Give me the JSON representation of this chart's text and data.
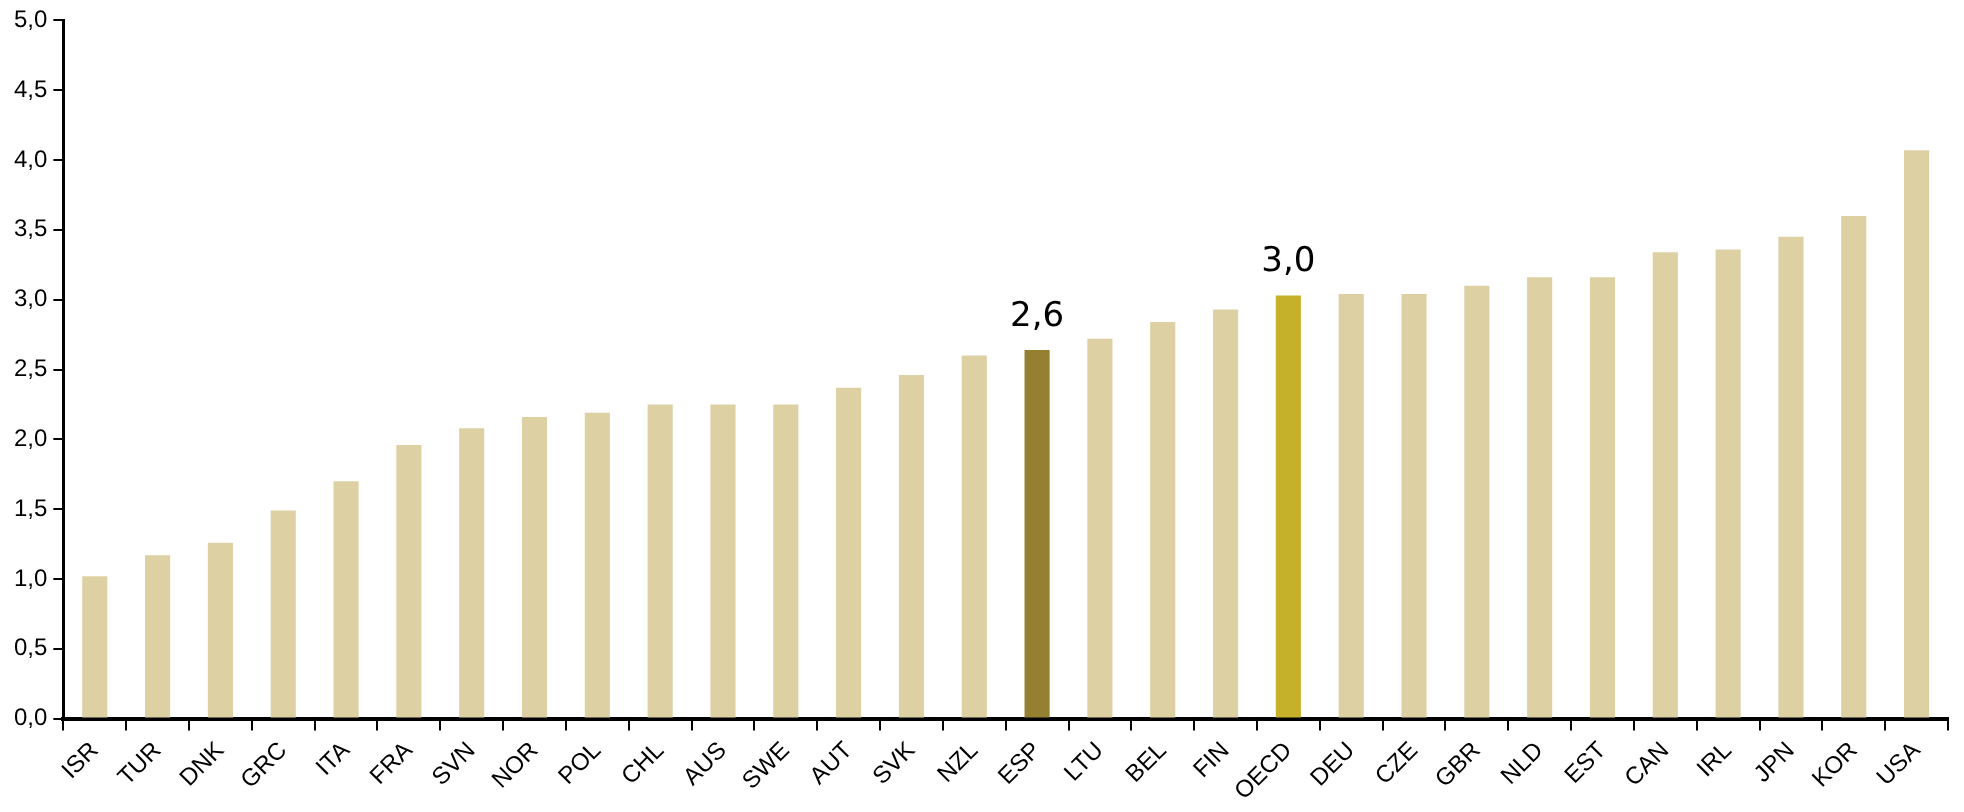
{
  "chart_data": {
    "type": "bar",
    "categories": [
      "ISR",
      "TUR",
      "DNK",
      "GRC",
      "ITA",
      "FRA",
      "SVN",
      "NOR",
      "POL",
      "CHL",
      "AUS",
      "SWE",
      "AUT",
      "SVK",
      "NZL",
      "ESP",
      "LTU",
      "BEL",
      "FIN",
      "OECD",
      "DEU",
      "CZE",
      "GBR",
      "NLD",
      "EST",
      "CAN",
      "IRL",
      "JPN",
      "KOR",
      "USA"
    ],
    "values": [
      1.02,
      1.17,
      1.26,
      1.49,
      1.7,
      1.96,
      2.08,
      2.16,
      2.19,
      2.25,
      2.25,
      2.25,
      2.37,
      2.46,
      2.6,
      2.64,
      2.72,
      2.84,
      2.93,
      3.03,
      3.04,
      3.04,
      3.1,
      3.16,
      3.16,
      3.34,
      3.36,
      3.45,
      3.6,
      4.07
    ],
    "colors": [
      "#ddd0a3",
      "#ddd0a3",
      "#ddd0a3",
      "#ddd0a3",
      "#ddd0a3",
      "#ddd0a3",
      "#ddd0a3",
      "#ddd0a3",
      "#ddd0a3",
      "#ddd0a3",
      "#ddd0a3",
      "#ddd0a3",
      "#ddd0a3",
      "#ddd0a3",
      "#ddd0a3",
      "#948030",
      "#ddd0a3",
      "#ddd0a3",
      "#ddd0a3",
      "#c6b12a",
      "#ddd0a3",
      "#ddd0a3",
      "#ddd0a3",
      "#ddd0a3",
      "#ddd0a3",
      "#ddd0a3",
      "#ddd0a3",
      "#ddd0a3",
      "#ddd0a3",
      "#ddd0a3"
    ],
    "value_labels": [
      null,
      null,
      null,
      null,
      null,
      null,
      null,
      null,
      null,
      null,
      null,
      null,
      null,
      null,
      null,
      "2,6",
      null,
      null,
      null,
      "3,0",
      null,
      null,
      null,
      null,
      null,
      null,
      null,
      null,
      null,
      null
    ],
    "ylim": [
      0,
      5
    ],
    "yticks": [
      {
        "value": 0,
        "label": "0,0"
      },
      {
        "value": 0.5,
        "label": "0,5"
      },
      {
        "value": 1,
        "label": "1,0"
      },
      {
        "value": 1.5,
        "label": "1,5"
      },
      {
        "value": 2,
        "label": "2,0"
      },
      {
        "value": 2.5,
        "label": "2,5"
      },
      {
        "value": 3,
        "label": "3,0"
      },
      {
        "value": 3.5,
        "label": "3,5"
      },
      {
        "value": 4,
        "label": "4,0"
      },
      {
        "value": 4.5,
        "label": "4,5"
      },
      {
        "value": 5,
        "label": "5,0"
      }
    ],
    "grid": false,
    "legend": false
  }
}
